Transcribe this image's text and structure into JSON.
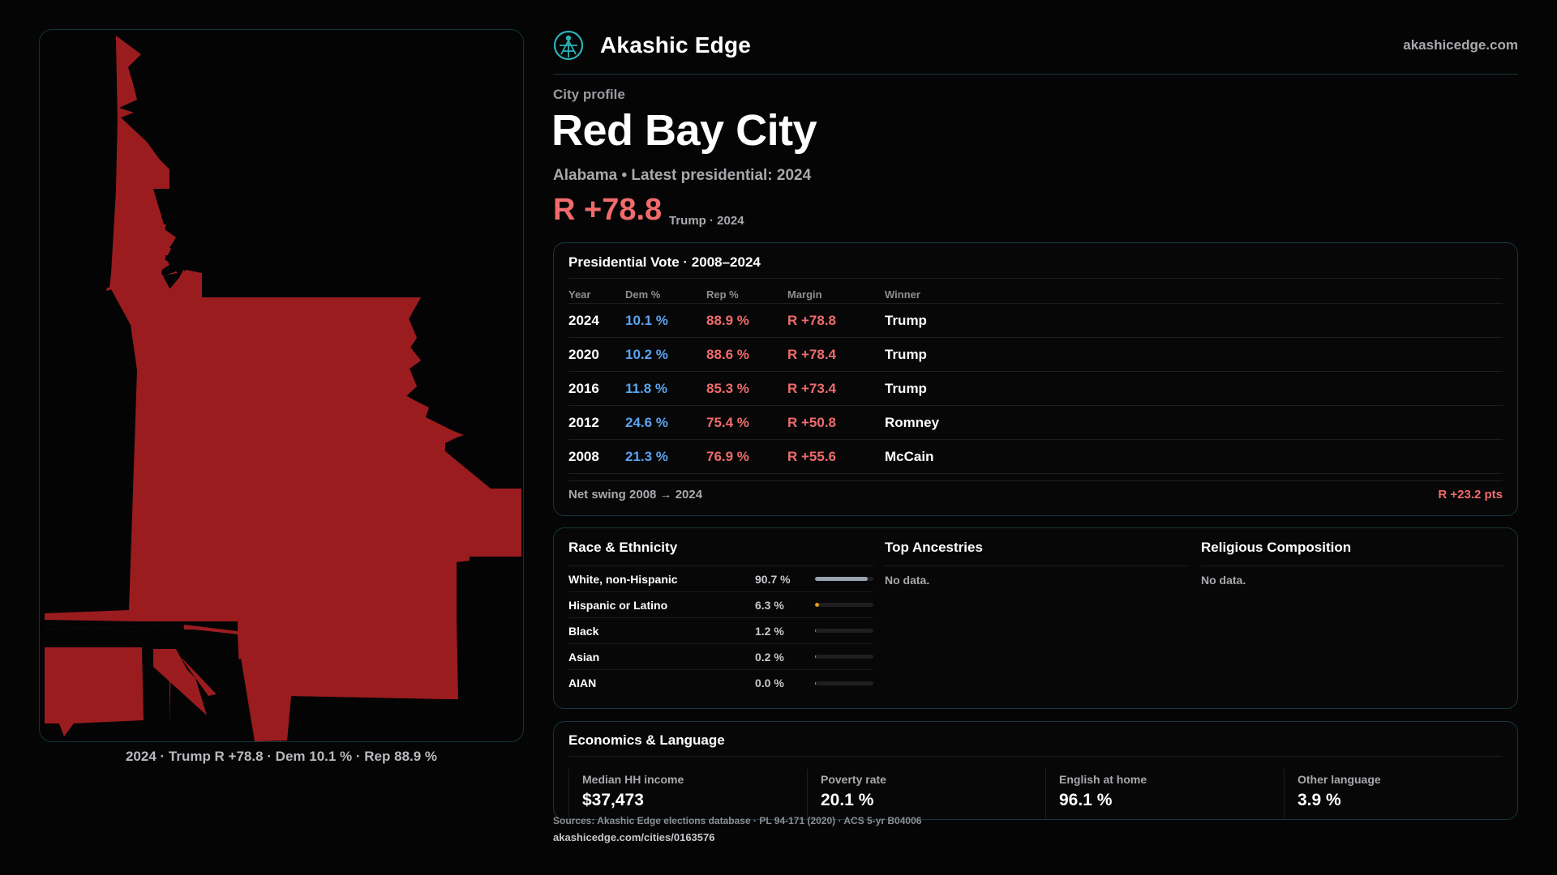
{
  "brand": {
    "name": "Akashic Edge",
    "site": "akashicedge.com",
    "logo_icon": "akashic-edge-logo-icon"
  },
  "colors": {
    "rep": "#f06b6b",
    "dem": "#5aa3ee",
    "map_fill": "#9a1c1f",
    "accent": "#2bb3b8"
  },
  "profile": {
    "eyebrow": "City profile",
    "city": "Red Bay City",
    "subtitle": "Alabama • Latest presidential: 2024",
    "margin": "R +78.8",
    "margin_note": "Trump · 2024"
  },
  "map": {
    "caption": "2024 · Trump R +78.8 · Dem 10.1 % · Rep 88.9 %"
  },
  "presidential": {
    "title": "Presidential Vote · 2008–2024",
    "headers": {
      "year": "Year",
      "dem": "Dem %",
      "rep": "Rep %",
      "margin": "Margin",
      "winner": "Winner"
    },
    "rows": [
      {
        "year": "2024",
        "dem": "10.1 %",
        "rep": "88.9 %",
        "margin": "R +78.8",
        "winner": "Trump"
      },
      {
        "year": "2020",
        "dem": "10.2 %",
        "rep": "88.6 %",
        "margin": "R +78.4",
        "winner": "Trump"
      },
      {
        "year": "2016",
        "dem": "11.8 %",
        "rep": "85.3 %",
        "margin": "R +73.4",
        "winner": "Trump"
      },
      {
        "year": "2012",
        "dem": "24.6 %",
        "rep": "75.4 %",
        "margin": "R +50.8",
        "winner": "Romney"
      },
      {
        "year": "2008",
        "dem": "21.3 %",
        "rep": "76.9 %",
        "margin": "R +55.6",
        "winner": "McCain"
      }
    ],
    "swing_label": "Net swing 2008 → 2024",
    "swing_value": "R +23.2 pts"
  },
  "race": {
    "title": "Race & Ethnicity",
    "rows": [
      {
        "name": "White, non-Hispanic",
        "pct": "90.7 %",
        "share": 90.7,
        "color": "#9aa3b0"
      },
      {
        "name": "Hispanic or Latino",
        "pct": "6.3 %",
        "share": 6.3,
        "color": "#e0a020"
      },
      {
        "name": "Black",
        "pct": "1.2 %",
        "share": 1.2,
        "color": "#3aa7b5"
      },
      {
        "name": "Asian",
        "pct": "0.2 %",
        "share": 0.2,
        "color": "#4fb37a"
      },
      {
        "name": "AIAN",
        "pct": "0.0 %",
        "share": 0.0,
        "color": "#b07ad0"
      }
    ]
  },
  "ancestries": {
    "title": "Top Ancestries",
    "empty": "No data."
  },
  "religion": {
    "title": "Religious Composition",
    "empty": "No data."
  },
  "economics": {
    "title": "Economics & Language",
    "stats": [
      {
        "label": "Median HH income",
        "value": "$37,473"
      },
      {
        "label": "Poverty rate",
        "value": "20.1 %"
      },
      {
        "label": "English at home",
        "value": "96.1 %"
      },
      {
        "label": "Other language",
        "value": "3.9 %"
      }
    ]
  },
  "footer": {
    "sources": "Sources: Akashic Edge elections database · PL 94-171 (2020) · ACS 5-yr B04006",
    "permalink": "akashicedge.com/cities/0163576"
  }
}
